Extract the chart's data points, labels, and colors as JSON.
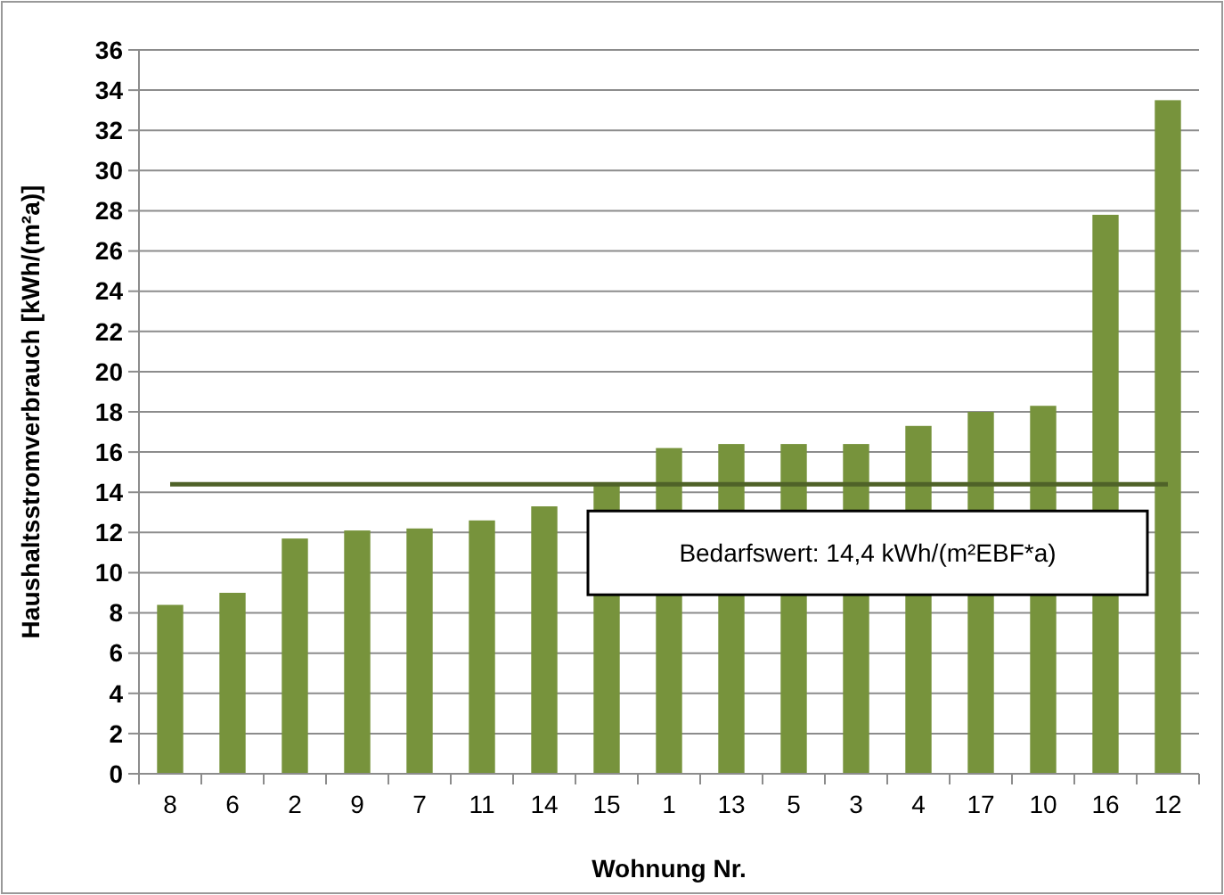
{
  "chart_data": {
    "type": "bar",
    "xlabel": "Wohnung Nr.",
    "ylabel": "Haushaltsstromverbrauch [kWh/(m²a)]",
    "categories": [
      "8",
      "6",
      "2",
      "9",
      "7",
      "11",
      "14",
      "15",
      "1",
      "13",
      "5",
      "3",
      "4",
      "17",
      "10",
      "16",
      "12"
    ],
    "values": [
      8.4,
      9.0,
      11.7,
      12.1,
      12.2,
      12.6,
      13.3,
      14.5,
      16.2,
      16.4,
      16.4,
      16.4,
      17.3,
      18.0,
      18.3,
      27.8,
      33.5
    ],
    "color": "#77933c",
    "ylim": [
      0,
      36
    ],
    "yticks": [
      0,
      2,
      4,
      6,
      8,
      10,
      12,
      14,
      16,
      18,
      20,
      22,
      24,
      26,
      28,
      30,
      32,
      34,
      36
    ],
    "grid": "y",
    "ref_lines": [
      {
        "axis": "y",
        "value": 14.4,
        "label": "Bedarfswert: 14,4 kWh/(m²EBF*a)",
        "color": "#4f6228"
      }
    ]
  }
}
